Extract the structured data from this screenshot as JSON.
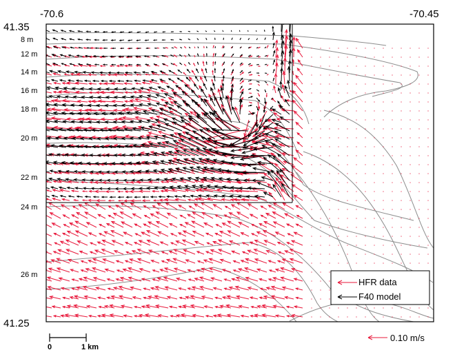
{
  "coordinates": {
    "lon_left": "-70.6",
    "lon_right": "-70.45",
    "lat_top": "41.35",
    "lat_bottom": "41.25"
  },
  "depth_labels": [
    "8 m",
    "12 m",
    "14 m",
    "16 m",
    "18 m",
    "20 m",
    "22 m",
    "24 m",
    "26 m"
  ],
  "legend": {
    "hfr_label": "HFR data",
    "model_label": "F40 model",
    "hfr_color": "#e8173a",
    "model_color": "#000000"
  },
  "scale_bar": {
    "start": "0",
    "end": "1 km"
  },
  "vector_scale": {
    "label": "0.10 m/s"
  },
  "colors": {
    "contour": "#8c8c8c",
    "frame": "#000000",
    "hfr": "#e8173a",
    "model": "#000000"
  }
}
